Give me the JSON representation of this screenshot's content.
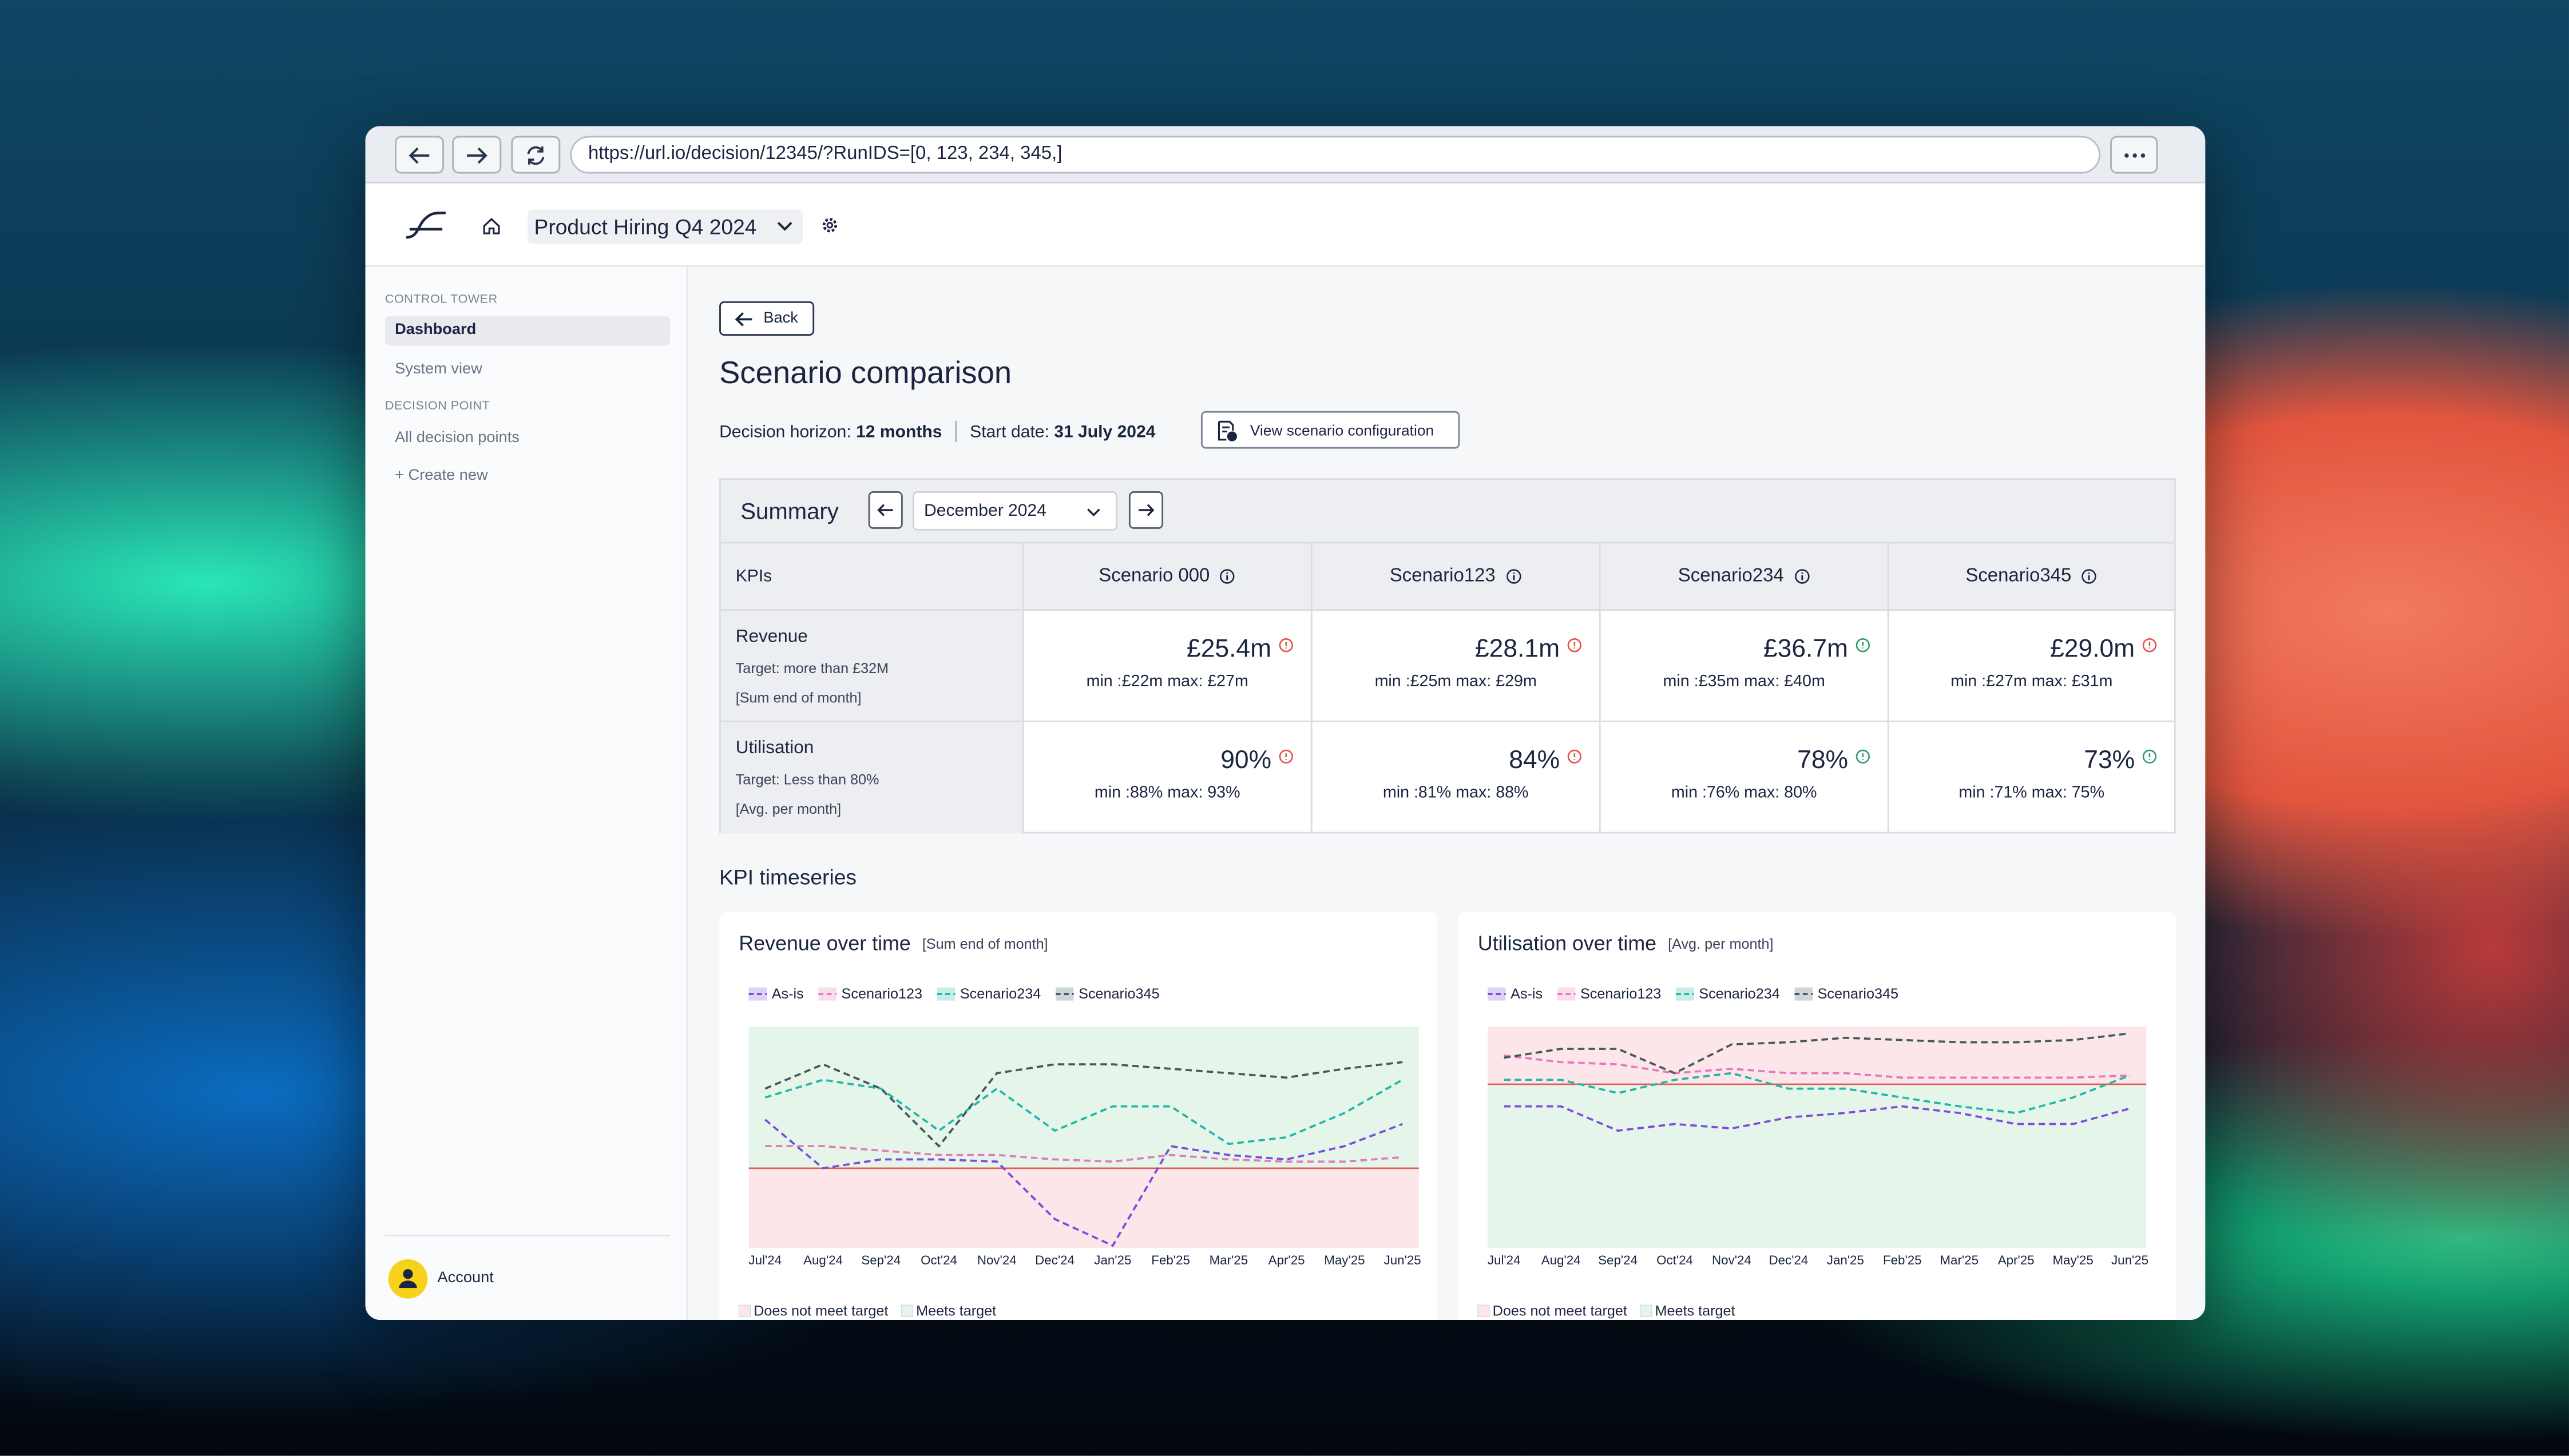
{
  "browser": {
    "url": "https://url.io/decision/12345/?RunIDS=[0, 123, 234, 345,]"
  },
  "header": {
    "project": "Product Hiring Q4 2024"
  },
  "sidebar": {
    "sections": [
      {
        "title": "CONTROL TOWER",
        "items": [
          "Dashboard",
          "System view"
        ]
      },
      {
        "title": "DECISION POINT",
        "items": [
          "All decision points",
          "+ Create new"
        ]
      }
    ],
    "account": "Account"
  },
  "page": {
    "back": "Back",
    "title": "Scenario comparison",
    "horizon_label": "Decision horizon:",
    "horizon": "12 months",
    "start_label": "Start date:",
    "start": "31 July 2024",
    "config_button": "View scenario configuration",
    "timeseries_title": "KPI timeseries"
  },
  "summary": {
    "title": "Summary",
    "month": "December 2024",
    "columns": [
      "KPIs",
      "Scenario 000",
      "Scenario123",
      "Scenario234",
      "Scenario345"
    ],
    "rows": [
      {
        "kpi": "Revenue",
        "target": "Target: more than £32M",
        "basis": "[Sum end of month]",
        "cells": [
          {
            "value": "£25.4m",
            "range": "min :£22m max: £27m",
            "status_color": "#e0524a"
          },
          {
            "value": "£28.1m",
            "range": "min :£25m max: £29m",
            "status_color": "#e0524a"
          },
          {
            "value": "£36.7m",
            "range": "min :£35m max: £40m",
            "status_color": "#2e9a6a"
          },
          {
            "value": "£29.0m",
            "range": "min :£27m max: £31m",
            "status_color": "#e0524a"
          }
        ]
      },
      {
        "kpi": "Utilisation",
        "target": "Target: Less than 80%",
        "basis": "[Avg. per month]",
        "cells": [
          {
            "value": "90%",
            "range": "min :88% max: 93%",
            "status_color": "#e0524a"
          },
          {
            "value": "84%",
            "range": "min :81% max: 88%",
            "status_color": "#e0524a"
          },
          {
            "value": "78%",
            "range": "min :76% max: 80%",
            "status_color": "#2e9a6a"
          },
          {
            "value": "73%",
            "range": "min :71% max: 75%",
            "status_color": "#2e9a6a"
          }
        ]
      }
    ]
  },
  "chart_data": [
    {
      "type": "line",
      "title": "Revenue over time",
      "subtitle": "[Sum end of month]",
      "categories": [
        "Jul'24",
        "Aug'24",
        "Sep'24",
        "Oct'24",
        "Nov'24",
        "Dec'24",
        "Jan'25",
        "Feb'25",
        "Mar'25",
        "Apr'25",
        "May'25",
        "Jun'25"
      ],
      "ylim": [
        0,
        100
      ],
      "target": 36,
      "target_color": "#e05a5a",
      "zones": [
        {
          "name": "Does not meet target",
          "color": "#fce6e9",
          "side": "below"
        },
        {
          "name": "Meets target",
          "color": "#e6f5ea",
          "side": "above"
        }
      ],
      "series": [
        {
          "name": "As-is",
          "color": "#7c4ddb",
          "values": [
            58,
            36,
            40,
            40,
            39,
            13,
            1,
            46,
            42,
            40,
            46,
            56
          ]
        },
        {
          "name": "Scenario123",
          "color": "#e27bb8",
          "values": [
            46,
            46,
            44,
            42,
            42,
            40,
            39,
            42,
            40,
            39,
            39,
            41
          ]
        },
        {
          "name": "Scenario234",
          "color": "#1fb8a6",
          "values": [
            68,
            76,
            72,
            53,
            72,
            53,
            64,
            64,
            47,
            50,
            61,
            76
          ]
        },
        {
          "name": "Scenario345",
          "color": "#3f5b5e",
          "values": [
            72,
            83,
            72,
            46,
            79,
            83,
            83,
            81,
            79,
            77,
            81,
            84
          ]
        }
      ]
    },
    {
      "type": "line",
      "title": "Utilisation over time",
      "subtitle": "[Avg. per month]",
      "categories": [
        "Jul'24",
        "Aug'24",
        "Sep'24",
        "Oct'24",
        "Nov'24",
        "Dec'24",
        "Jan'25",
        "Feb'25",
        "Mar'25",
        "Apr'25",
        "May'25",
        "Jun'25"
      ],
      "ylim": [
        0,
        100
      ],
      "target": 74,
      "target_color": "#e05a5a",
      "zones": [
        {
          "name": "Does not meet target",
          "color": "#fce6e9",
          "side": "above"
        },
        {
          "name": "Meets target",
          "color": "#e6f5ea",
          "side": "below"
        }
      ],
      "series": [
        {
          "name": "As-is",
          "color": "#7c4ddb",
          "values": [
            64,
            64,
            53,
            56,
            54,
            59,
            61,
            64,
            61,
            56,
            56,
            63
          ]
        },
        {
          "name": "Scenario123",
          "color": "#e27bb8",
          "values": [
            87,
            84,
            83,
            79,
            81,
            79,
            79,
            77,
            77,
            77,
            77,
            78
          ]
        },
        {
          "name": "Scenario234",
          "color": "#1fb8a6",
          "values": [
            76,
            76,
            70,
            76,
            79,
            72,
            72,
            68,
            64,
            61,
            68,
            78
          ]
        },
        {
          "name": "Scenario345",
          "color": "#3f5b5e",
          "values": [
            86,
            90,
            90,
            79,
            92,
            93,
            95,
            94,
            93,
            93,
            94,
            97
          ]
        }
      ]
    }
  ]
}
